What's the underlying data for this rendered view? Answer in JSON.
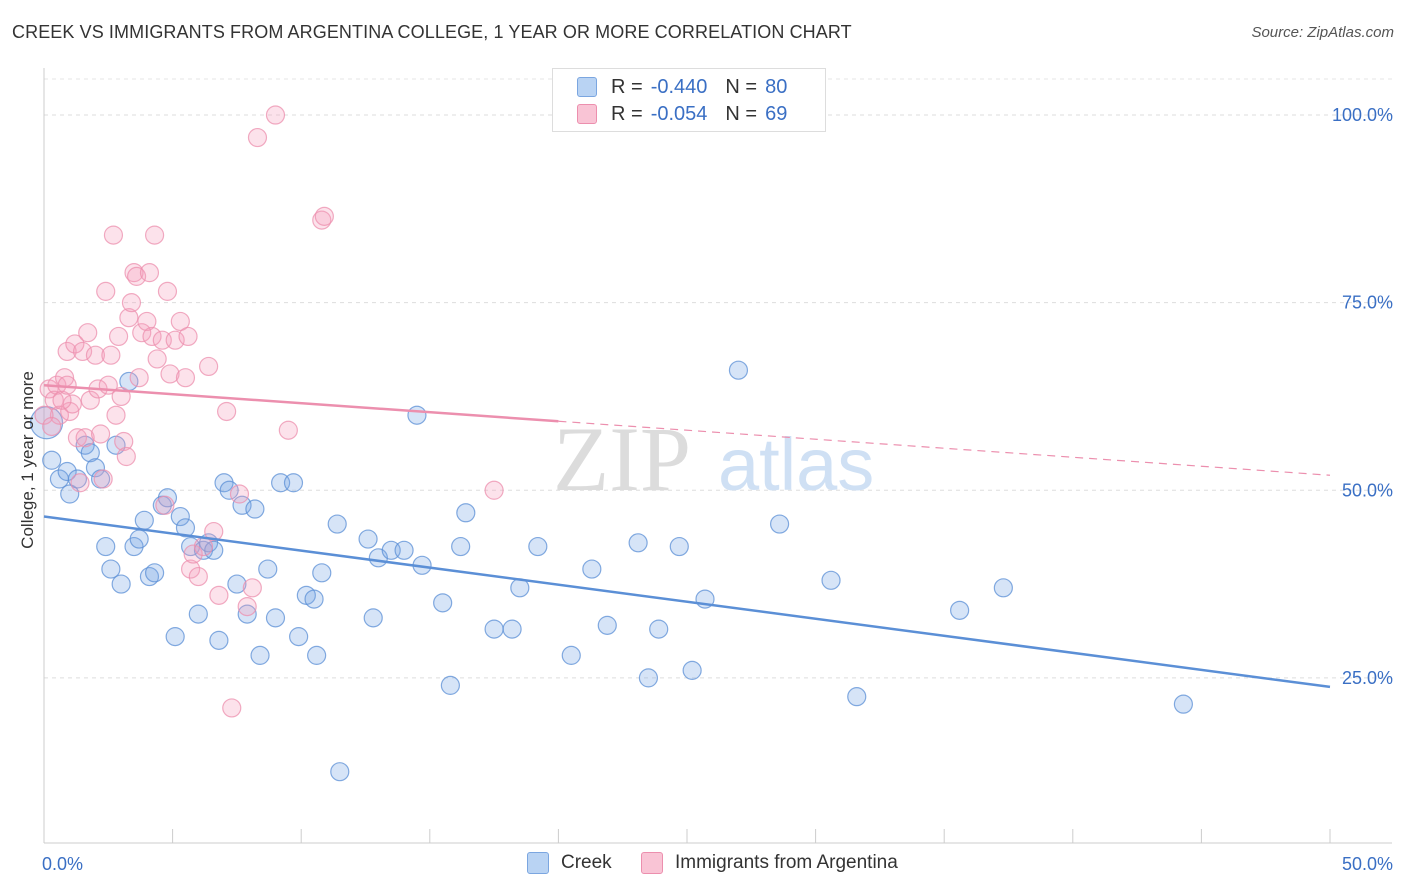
{
  "title": "CREEK VS IMMIGRANTS FROM ARGENTINA COLLEGE, 1 YEAR OR MORE CORRELATION CHART",
  "source": "Source: ZipAtlas.com",
  "watermark": {
    "zip": "ZIP",
    "atlas": "atlas"
  },
  "legend": {
    "r_label": "R =",
    "n_label": "N =",
    "rows": [
      {
        "r": "-0.440",
        "n": "80",
        "color": "#5b8fd6"
      },
      {
        "r": "-0.054",
        "n": "69",
        "color": "#ec8fae"
      }
    ]
  },
  "chart_data": {
    "type": "scatter",
    "title": "CREEK VS IMMIGRANTS FROM ARGENTINA COLLEGE, 1 YEAR OR MORE CORRELATION CHART",
    "xlabel": "",
    "ylabel": "College, 1 year or more",
    "xlim": [
      0,
      50
    ],
    "ylim": [
      3,
      106
    ],
    "x_tick_labels": [
      "0.0%",
      "50.0%"
    ],
    "y_tick_labels": [
      "25.0%",
      "50.0%",
      "75.0%",
      "100.0%"
    ],
    "y_ticks": [
      25,
      50,
      75,
      100
    ],
    "grid": true,
    "legend_position": "top-center",
    "series": [
      {
        "name": "Creek",
        "color": "#5b8fd6",
        "fill": "rgba(120,165,228,0.30)",
        "trend": {
          "x": [
            0,
            50
          ],
          "y": [
            46.5,
            23.8
          ],
          "dashed_from": null
        },
        "points": [
          [
            0.3,
            54
          ],
          [
            0.6,
            51.5
          ],
          [
            0.9,
            52.5
          ],
          [
            1.0,
            49.5
          ],
          [
            1.3,
            51.5
          ],
          [
            1.6,
            56
          ],
          [
            1.8,
            55
          ],
          [
            2.0,
            53
          ],
          [
            2.2,
            51.5
          ],
          [
            2.4,
            42.5
          ],
          [
            2.6,
            39.5
          ],
          [
            2.8,
            56
          ],
          [
            3.0,
            37.5
          ],
          [
            3.3,
            64.5
          ],
          [
            3.5,
            42.5
          ],
          [
            3.7,
            43.5
          ],
          [
            3.9,
            46
          ],
          [
            4.1,
            38.5
          ],
          [
            4.3,
            39
          ],
          [
            4.6,
            48
          ],
          [
            4.8,
            49
          ],
          [
            5.1,
            30.5
          ],
          [
            5.3,
            46.5
          ],
          [
            5.5,
            45
          ],
          [
            5.7,
            42.5
          ],
          [
            6.0,
            33.5
          ],
          [
            6.2,
            42
          ],
          [
            6.4,
            43
          ],
          [
            6.6,
            42
          ],
          [
            6.8,
            30
          ],
          [
            7.0,
            51
          ],
          [
            7.2,
            50
          ],
          [
            7.5,
            37.5
          ],
          [
            7.7,
            48
          ],
          [
            7.9,
            33.5
          ],
          [
            8.2,
            47.5
          ],
          [
            8.4,
            28
          ],
          [
            8.7,
            39.5
          ],
          [
            9.0,
            33
          ],
          [
            9.2,
            51
          ],
          [
            9.7,
            51
          ],
          [
            9.9,
            30.5
          ],
          [
            10.2,
            36
          ],
          [
            10.5,
            35.5
          ],
          [
            10.6,
            28
          ],
          [
            10.8,
            39
          ],
          [
            11.4,
            45.5
          ],
          [
            11.5,
            12.5
          ],
          [
            12.6,
            43.5
          ],
          [
            12.8,
            33
          ],
          [
            13.0,
            41
          ],
          [
            13.5,
            42
          ],
          [
            14.0,
            42
          ],
          [
            14.5,
            60
          ],
          [
            14.7,
            40
          ],
          [
            15.5,
            35
          ],
          [
            15.8,
            24
          ],
          [
            16.2,
            42.5
          ],
          [
            16.4,
            47
          ],
          [
            17.5,
            31.5
          ],
          [
            18.2,
            31.5
          ],
          [
            18.5,
            37
          ],
          [
            19.2,
            42.5
          ],
          [
            20.5,
            28
          ],
          [
            21.3,
            39.5
          ],
          [
            21.9,
            32
          ],
          [
            23.1,
            43
          ],
          [
            23.5,
            25
          ],
          [
            23.9,
            31.5
          ],
          [
            24.7,
            42.5
          ],
          [
            25.2,
            26
          ],
          [
            25.7,
            35.5
          ],
          [
            27.0,
            66
          ],
          [
            28.6,
            45.5
          ],
          [
            30.6,
            38
          ],
          [
            31.6,
            22.5
          ],
          [
            35.6,
            34
          ],
          [
            37.3,
            37
          ],
          [
            44.3,
            21.5
          ],
          [
            0.1,
            59
          ]
        ]
      },
      {
        "name": "Immigrants from Argentina",
        "color": "#ec8fae",
        "fill": "rgba(244,160,189,0.30)",
        "trend": {
          "x": [
            0,
            50
          ],
          "y": [
            64,
            52
          ],
          "dashed_from": 20
        },
        "points": [
          [
            0.2,
            63.5
          ],
          [
            0.4,
            62
          ],
          [
            0.5,
            64
          ],
          [
            0.6,
            60
          ],
          [
            0.8,
            65
          ],
          [
            0.9,
            68.5
          ],
          [
            1.0,
            60.5
          ],
          [
            1.1,
            61.5
          ],
          [
            1.2,
            69.5
          ],
          [
            1.3,
            57
          ],
          [
            1.5,
            68.5
          ],
          [
            1.6,
            57
          ],
          [
            1.7,
            71
          ],
          [
            1.8,
            62
          ],
          [
            2.0,
            68
          ],
          [
            2.1,
            63.5
          ],
          [
            2.2,
            57.5
          ],
          [
            2.3,
            51.5
          ],
          [
            2.4,
            76.5
          ],
          [
            2.5,
            64
          ],
          [
            2.6,
            68
          ],
          [
            2.7,
            84
          ],
          [
            2.8,
            60
          ],
          [
            2.9,
            70.5
          ],
          [
            3.0,
            62.5
          ],
          [
            3.1,
            56.5
          ],
          [
            3.2,
            54.5
          ],
          [
            3.3,
            73
          ],
          [
            3.4,
            75
          ],
          [
            3.5,
            79
          ],
          [
            3.6,
            78.5
          ],
          [
            3.7,
            65
          ],
          [
            3.8,
            71
          ],
          [
            4.0,
            72.5
          ],
          [
            4.1,
            79
          ],
          [
            4.2,
            70.5
          ],
          [
            4.3,
            84
          ],
          [
            4.4,
            67.5
          ],
          [
            4.6,
            70
          ],
          [
            4.7,
            48
          ],
          [
            4.8,
            76.5
          ],
          [
            4.9,
            65.5
          ],
          [
            5.1,
            70
          ],
          [
            5.3,
            72.5
          ],
          [
            5.5,
            65
          ],
          [
            5.6,
            70.5
          ],
          [
            5.7,
            39.5
          ],
          [
            5.8,
            41.5
          ],
          [
            6.0,
            38.5
          ],
          [
            6.2,
            42.5
          ],
          [
            6.4,
            66.5
          ],
          [
            6.6,
            44.5
          ],
          [
            6.8,
            36
          ],
          [
            7.1,
            60.5
          ],
          [
            7.3,
            21
          ],
          [
            7.6,
            49.5
          ],
          [
            7.9,
            34.5
          ],
          [
            8.1,
            37
          ],
          [
            8.3,
            97
          ],
          [
            9.0,
            100
          ],
          [
            9.5,
            58
          ],
          [
            10.8,
            86
          ],
          [
            10.9,
            86.5
          ],
          [
            17.5,
            50
          ],
          [
            1.4,
            51
          ],
          [
            0.0,
            60
          ],
          [
            0.3,
            58.5
          ],
          [
            0.7,
            62
          ],
          [
            0.9,
            64
          ]
        ]
      }
    ]
  }
}
